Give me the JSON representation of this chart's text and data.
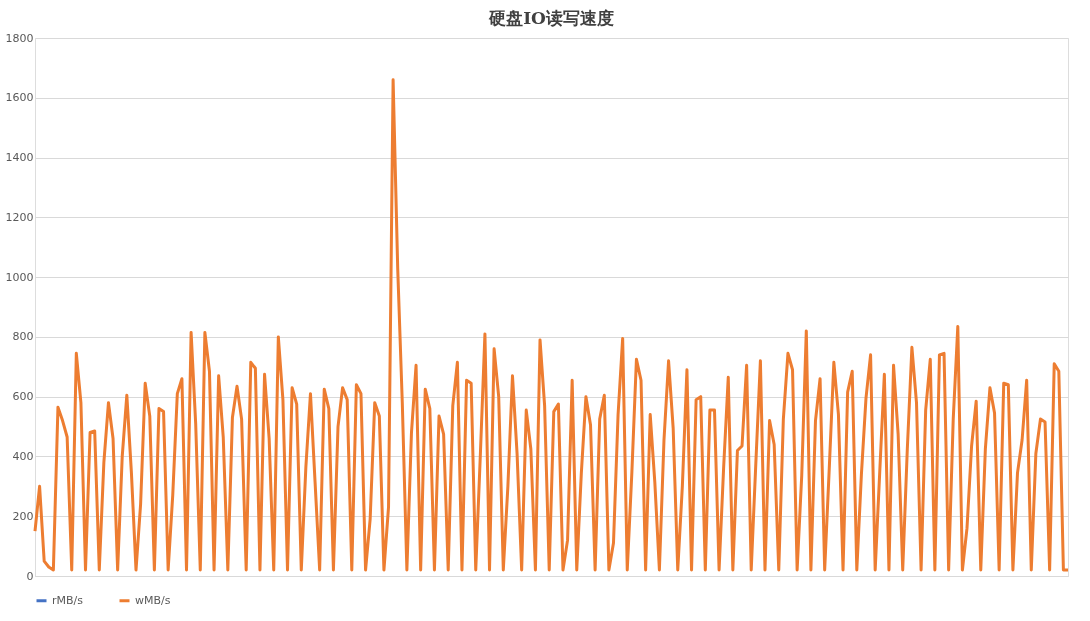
{
  "chart_data": {
    "type": "line",
    "title": "硬盘IO读写速度",
    "ylim": [
      0,
      1800
    ],
    "yticks": [
      0,
      200,
      400,
      600,
      800,
      1000,
      1200,
      1400,
      1600,
      1800
    ],
    "grid": "y",
    "legend": "bottom",
    "marker": "none",
    "line_style": "solid",
    "tick_labels": "y",
    "categories": [
      null,
      null,
      null,
      null,
      null,
      null,
      null,
      null,
      null,
      null,
      null,
      null,
      null,
      null,
      null,
      null,
      null,
      null,
      null,
      null,
      null,
      null,
      null,
      null,
      null,
      null,
      null,
      null,
      null,
      null,
      null,
      null,
      null,
      null,
      null,
      null,
      null,
      null,
      null,
      null,
      null,
      null,
      null,
      null,
      null,
      null,
      null,
      null,
      null,
      null,
      null,
      null,
      null,
      null,
      null,
      null,
      null,
      null,
      null,
      null,
      null,
      null,
      null,
      null,
      null,
      null,
      null,
      null,
      null,
      null,
      null,
      null,
      null,
      null,
      null,
      null,
      null,
      null,
      null,
      null,
      null,
      null,
      null,
      null,
      null,
      null,
      null,
      null,
      null,
      null,
      null,
      null,
      null,
      null,
      null,
      null,
      null,
      null,
      null,
      null,
      null,
      null,
      null,
      null,
      null,
      null,
      null,
      null,
      null,
      null,
      null,
      null,
      null,
      null,
      null,
      null,
      null,
      null,
      null,
      null,
      null,
      null,
      null,
      null,
      null,
      null,
      null,
      null,
      null,
      null,
      null,
      null,
      null,
      null,
      null,
      null,
      null,
      null,
      null,
      null,
      null,
      null,
      null,
      null,
      null,
      null,
      null,
      null,
      null,
      null,
      null,
      null,
      null,
      null,
      null,
      null,
      null,
      null,
      null,
      null,
      null,
      null,
      null,
      null,
      null,
      null,
      null,
      null,
      null,
      null,
      null,
      null,
      null,
      null,
      null,
      null,
      null,
      null,
      null,
      null,
      null,
      null,
      null,
      null,
      null,
      null,
      null,
      null,
      null,
      null,
      null,
      null,
      null,
      null,
      null,
      null,
      null,
      null,
      null,
      null,
      null,
      null,
      null,
      null,
      null,
      null,
      null,
      null,
      null,
      null,
      null,
      null,
      null,
      null,
      null,
      null,
      null,
      null,
      null,
      null,
      null,
      null,
      null,
      null,
      null,
      null
    ],
    "series": [
      {
        "name": "rMB/s",
        "color": "#4472c4",
        "values": [
          null,
          null,
          null,
          null,
          null,
          null,
          null,
          null,
          null,
          null,
          null,
          null,
          null,
          null,
          null,
          null,
          null,
          null,
          null,
          null,
          null,
          null,
          null,
          null,
          null,
          null,
          null,
          null,
          null,
          null,
          null,
          null,
          null,
          null,
          null,
          null,
          null,
          null,
          null,
          null,
          null,
          null,
          null,
          null,
          null,
          null,
          null,
          null,
          null,
          null,
          null,
          null,
          null,
          null,
          null,
          null,
          null,
          null,
          null,
          null,
          null,
          null,
          null,
          null,
          null,
          null,
          null,
          null,
          null,
          null,
          null,
          null,
          null,
          null,
          null,
          null,
          null,
          null,
          null,
          null,
          null,
          null,
          null,
          null,
          null,
          null,
          null,
          null,
          null,
          null,
          null,
          null,
          null,
          null,
          null,
          null,
          null,
          null,
          null,
          null,
          null,
          null,
          null,
          null,
          null,
          null,
          null,
          null,
          null,
          null,
          null,
          null,
          null,
          null,
          null,
          null,
          null,
          null,
          null,
          null,
          null,
          null,
          null,
          null,
          null,
          null,
          null,
          null,
          null,
          null,
          null,
          null,
          null,
          null,
          null,
          null,
          null,
          null,
          null,
          null,
          null,
          null,
          null,
          null,
          null,
          null,
          null,
          null,
          null,
          null,
          null,
          null,
          null,
          null,
          null,
          null,
          null,
          null,
          null,
          null,
          null,
          null,
          null,
          null,
          null,
          null,
          null,
          null,
          null,
          null,
          null,
          null,
          null,
          null,
          null,
          null,
          null,
          null,
          null,
          null,
          null,
          null,
          null,
          null,
          null,
          null,
          null,
          null,
          null,
          null,
          null,
          null,
          null,
          null,
          null,
          null,
          null,
          null,
          null,
          null,
          null,
          null,
          null,
          null,
          null,
          null,
          null,
          null,
          null,
          null,
          null,
          null,
          null,
          null,
          null,
          null,
          null,
          null,
          null,
          null,
          null,
          null,
          null,
          null,
          null,
          null
        ]
      },
      {
        "name": "wMB/s",
        "color": "#ed7d31",
        "values": [
          150,
          300,
          50,
          30,
          20,
          565,
          520,
          465,
          20,
          745,
          580,
          20,
          480,
          485,
          20,
          380,
          580,
          460,
          20,
          400,
          605,
          345,
          20,
          240,
          645,
          535,
          20,
          560,
          550,
          20,
          270,
          610,
          660,
          20,
          815,
          510,
          20,
          815,
          685,
          20,
          670,
          465,
          20,
          530,
          635,
          525,
          20,
          715,
          695,
          20,
          675,
          460,
          20,
          800,
          590,
          20,
          630,
          575,
          20,
          365,
          610,
          315,
          20,
          625,
          560,
          20,
          500,
          630,
          590,
          20,
          640,
          610,
          20,
          190,
          580,
          535,
          20,
          230,
          1660,
          1030,
          580,
          20,
          480,
          705,
          20,
          625,
          560,
          20,
          535,
          475,
          20,
          570,
          715,
          20,
          655,
          645,
          20,
          405,
          810,
          20,
          760,
          600,
          20,
          300,
          670,
          410,
          20,
          555,
          425,
          20,
          790,
          570,
          20,
          550,
          575,
          20,
          120,
          655,
          20,
          345,
          600,
          505,
          20,
          525,
          605,
          20,
          110,
          540,
          795,
          20,
          345,
          725,
          655,
          20,
          540,
          315,
          20,
          455,
          720,
          495,
          20,
          300,
          690,
          20,
          590,
          600,
          20,
          555,
          555,
          20,
          365,
          665,
          20,
          420,
          435,
          705,
          20,
          375,
          720,
          20,
          520,
          440,
          20,
          525,
          745,
          690,
          20,
          335,
          820,
          20,
          520,
          660,
          20,
          360,
          715,
          540,
          20,
          615,
          685,
          20,
          340,
          595,
          740,
          20,
          350,
          675,
          20,
          705,
          475,
          20,
          425,
          765,
          580,
          20,
          555,
          725,
          20,
          740,
          745,
          20,
          525,
          835,
          20,
          160,
          435,
          585,
          20,
          425,
          630,
          545,
          20,
          645,
          640,
          20,
          345,
          455,
          655,
          20,
          410,
          525,
          515,
          20,
          710,
          685,
          20,
          20
        ]
      }
    ]
  }
}
